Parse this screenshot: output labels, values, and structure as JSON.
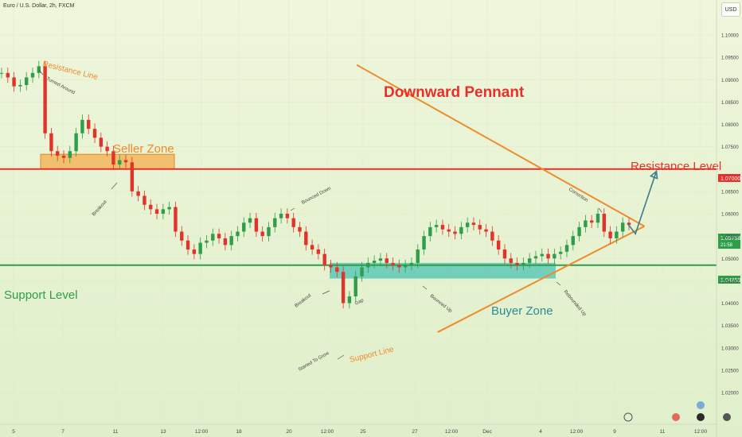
{
  "header": {
    "symbol": "Euro / U.S. Dollar, 2h, FXCM",
    "currency_button": "USD"
  },
  "annotations": {
    "title": "Downward Pennant",
    "resistance_line": "Resistance Line",
    "turned_around": "Turned Around",
    "seller_zone": "Seller Zone",
    "breakout_1": "Breakout",
    "bounced_down": "Bounced Down",
    "resistance_level": "Resistance Level",
    "correction": "Correction",
    "support_level": "Support Level",
    "breakout_2": "Breakout",
    "gap": "Gap",
    "bounced_up": "Bounced Up",
    "buyer_zone": "Buyer Zone",
    "rebounded_up": "Rebounded Up",
    "started_to_grow": "Started To Grow",
    "support_line": "Support Line"
  },
  "colors": {
    "orange": "#f08a2b",
    "title_red": "#e8302a",
    "resistance_red": "#e8302a",
    "support_green": "#2e9e4a",
    "seller_zone": "#f3b152",
    "buyer_zone": "#4bc3b3",
    "arrow": "#3a7e8c",
    "candle_up": "#2e9e4a",
    "candle_down": "#e0342b"
  },
  "chart_data": {
    "type": "candlestick",
    "title": "Downward Pennant",
    "yticks": [
      "1.10000",
      "1.09500",
      "1.09000",
      "1.08500",
      "1.08000",
      "1.07500",
      "1.06500",
      "1.06000",
      "1.05500",
      "1.05000",
      "1.04500",
      "1.04000",
      "1.03500",
      "1.03000",
      "1.02500",
      "1.02000"
    ],
    "ylim": [
      1.0195,
      1.1035
    ],
    "xticks": [
      "5",
      "7",
      "11",
      "13",
      "12:00",
      "18",
      "20",
      "12:00",
      "25",
      "27",
      "12:00",
      "Dec",
      "4",
      "12:00",
      "9",
      "11",
      "12:00"
    ],
    "price_labels": {
      "resistance_level": "1.07000",
      "support_level": "1.04850",
      "current": "1.05758",
      "countdown": "21:58"
    },
    "levels": {
      "resistance_level": 1.07,
      "support_level": 1.0485
    },
    "seller_zone": [
      1.07,
      1.0733
    ],
    "buyer_zone": [
      1.0455,
      1.049
    ],
    "close_path": [
      1.0915,
      1.0905,
      1.0885,
      1.0888,
      1.0905,
      1.0915,
      1.093,
      1.078,
      1.074,
      1.073,
      1.0725,
      1.074,
      1.078,
      1.081,
      1.079,
      1.077,
      1.075,
      1.074,
      1.071,
      1.072,
      1.0715,
      1.065,
      1.064,
      1.062,
      1.061,
      1.06,
      1.061,
      1.0615,
      1.056,
      1.054,
      1.052,
      1.051,
      1.0535,
      1.054,
      1.0555,
      1.0545,
      1.053,
      1.055,
      1.056,
      1.058,
      1.059,
      1.056,
      1.055,
      1.057,
      1.059,
      1.06,
      1.059,
      1.057,
      1.056,
      1.053,
      1.052,
      1.051,
      1.0485,
      1.048,
      1.047,
      1.04,
      1.0415,
      1.046,
      1.048,
      1.049,
      1.0495,
      1.05,
      1.049,
      1.0485,
      1.048,
      1.0485,
      1.049,
      1.052,
      1.055,
      1.057,
      1.0575,
      1.0565,
      1.056,
      1.0555,
      1.057,
      1.058,
      1.0575,
      1.0565,
      1.056,
      1.054,
      1.052,
      1.05,
      1.049,
      1.0485,
      1.049,
      1.05,
      1.0505,
      1.051,
      1.05,
      1.051,
      1.0515,
      1.053,
      1.055,
      1.057,
      1.0585,
      1.058,
      1.06,
      1.056,
      1.0545,
      1.056,
      1.058,
      1.0575
    ],
    "resistance_trendline": [
      [
        5.9,
        1.0933
      ],
      [
        10.7,
        1.0572
      ]
    ],
    "support_trendline": [
      [
        7.25,
        1.0335
      ],
      [
        10.7,
        1.0572
      ]
    ],
    "projection": [
      [
        10.42,
        1.0578
      ],
      [
        10.55,
        1.0555
      ],
      [
        10.9,
        1.0695
      ]
    ]
  }
}
